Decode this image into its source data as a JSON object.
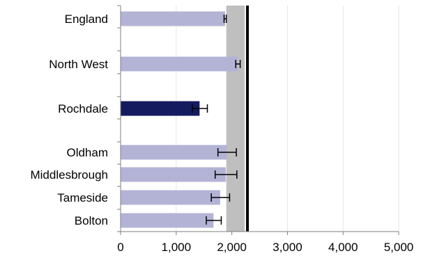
{
  "chart_data": {
    "type": "bar",
    "orientation": "horizontal",
    "categories": [
      "England",
      "North West",
      "Rochdale",
      "Oldham",
      "Middlesbrough",
      "Tameside",
      "Bolton"
    ],
    "series": [
      {
        "values": [
          1880,
          2110,
          1420,
          1910,
          1890,
          1790,
          1670
        ],
        "error_low": [
          1860,
          2070,
          1290,
          1750,
          1700,
          1630,
          1540
        ],
        "error_high": [
          1900,
          2150,
          1560,
          2080,
          2090,
          1960,
          1810
        ]
      }
    ],
    "highlight_category": "Rochdale",
    "reference_band": [
      1900,
      2230
    ],
    "reference_line": 2280,
    "xlim": [
      0,
      5000
    ],
    "xticks": [
      0,
      1000,
      2000,
      3000,
      4000,
      5000
    ],
    "xtick_labels": [
      "0",
      "1,000",
      "2,000",
      "3,000",
      "4,000",
      "5,000"
    ],
    "grid": "vertical",
    "title": "",
    "xlabel": "",
    "ylabel": "",
    "colors": {
      "bar": "#b3b3d6",
      "highlight": "#141b5e",
      "band": "#bfbfbf",
      "reference_line": "#000000",
      "grid": "#e6e6e6",
      "axis": "#7f7f7f",
      "error_bar": "#000000"
    }
  }
}
